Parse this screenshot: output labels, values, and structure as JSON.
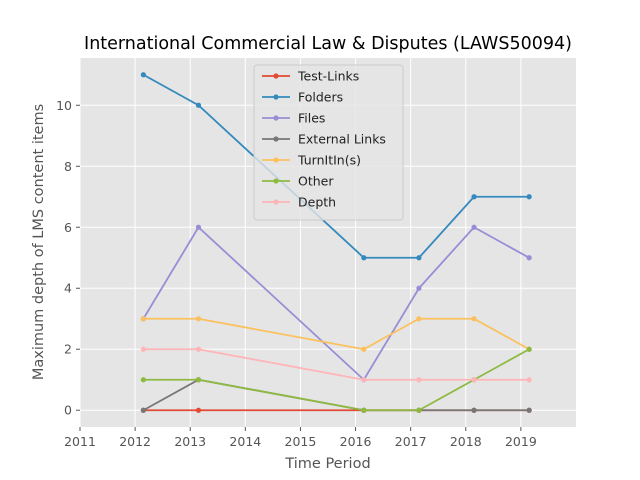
{
  "chart_data": {
    "type": "line",
    "title": "International Commercial Law & Disputes (LAWS50094)",
    "xlabel": "Time Period",
    "ylabel": "Maximum depth of LMS content items",
    "xlim": [
      2011,
      2020
    ],
    "ylim": [
      -0.55,
      11.55
    ],
    "xticks": [
      2011,
      2012,
      2013,
      2014,
      2015,
      2016,
      2017,
      2018,
      2019
    ],
    "yticks": [
      0,
      2,
      4,
      6,
      8,
      10
    ],
    "grid": true,
    "background": "#e5e5e5",
    "legend_position": "top-center",
    "x": [
      2012.15,
      2013.15,
      2016.15,
      2017.15,
      2018.15,
      2019.15
    ],
    "series": [
      {
        "name": "Test-Links",
        "color": "#e24a33",
        "values": [
          0,
          0,
          0,
          0,
          0,
          0
        ]
      },
      {
        "name": "Folders",
        "color": "#348abd",
        "values": [
          11,
          10,
          null,
          5,
          7,
          7
        ],
        "mid_points": {
          "x": [
            2016.15
          ],
          "y": [
            5
          ]
        }
      },
      {
        "name": "Files",
        "color": "#988ed5",
        "values": [
          3,
          6,
          1,
          4,
          6,
          5
        ]
      },
      {
        "name": "External Links",
        "color": "#777777",
        "values": [
          0,
          1,
          0,
          0,
          0,
          0
        ]
      },
      {
        "name": "TurnItIn(s)",
        "color": "#fbc15e",
        "values": [
          3,
          3,
          2,
          3,
          3,
          2
        ]
      },
      {
        "name": "Other",
        "color": "#8eba42",
        "values": [
          1,
          1,
          0,
          0,
          1,
          2
        ]
      },
      {
        "name": "Depth",
        "color": "#ffb5b8",
        "values": [
          2,
          2,
          1,
          1,
          1,
          1
        ]
      }
    ]
  }
}
